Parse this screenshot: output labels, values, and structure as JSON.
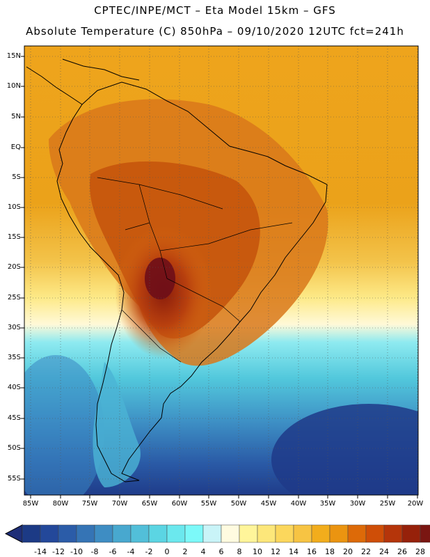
{
  "header": {
    "line1": "CPTEC/INPE/MCT –  Eta Model 15km – GFS",
    "line2": "Absolute Temperature (C) 850hPa – 09/10/2020 12UTC fct=241h"
  },
  "map": {
    "lat_labels": [
      "15N",
      "10N",
      "5N",
      "EQ",
      "5S",
      "10S",
      "15S",
      "20S",
      "25S",
      "30S",
      "35S",
      "40S",
      "45S",
      "50S",
      "55S"
    ],
    "lon_labels": [
      "85W",
      "80W",
      "75W",
      "70W",
      "65W",
      "60W",
      "55W",
      "50W",
      "45W",
      "40W",
      "35W",
      "30W",
      "25W",
      "20W"
    ]
  },
  "colorbar": {
    "labels": [
      "-14",
      "-12",
      "-10",
      "-8",
      "-6",
      "-4",
      "-2",
      "0",
      "2",
      "4",
      "6",
      "8",
      "10",
      "12",
      "14",
      "16",
      "18",
      "20",
      "22",
      "24",
      "26",
      "28"
    ],
    "colors": [
      "#1c3a85",
      "#23489a",
      "#2b5ca8",
      "#3574b5",
      "#3e8dc3",
      "#48a8cf",
      "#52bfd9",
      "#5bd5e3",
      "#6be8ee",
      "#7cf9f9",
      "#c9f4f8",
      "#fffbe0",
      "#fff59a",
      "#fde77a",
      "#fcd75c",
      "#f7c443",
      "#f2ad1c",
      "#eb9410",
      "#dd6a08",
      "#cf4e07",
      "#b5350a",
      "#96210a",
      "#7a1612"
    ],
    "over_color": "#7d0a1e",
    "under_color": "#1e2e78"
  }
}
